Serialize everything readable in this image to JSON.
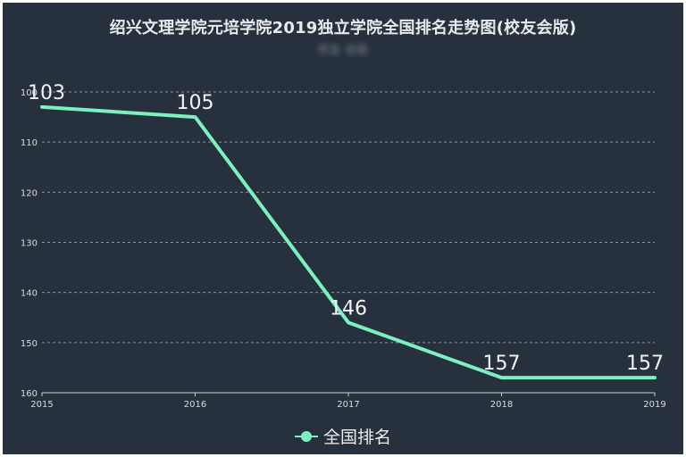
{
  "chart_data": {
    "type": "line",
    "title": "绍兴文理学院元培学院2019独立学院全国排名走势图(校友会版)",
    "subtitle": "校友 会版",
    "categories": [
      "2015",
      "2016",
      "2017",
      "2018",
      "2019"
    ],
    "series": [
      {
        "name": "全国排名",
        "values": [
          103,
          105,
          146,
          157,
          157
        ]
      }
    ],
    "y_ticks": [
      "100",
      "110",
      "120",
      "130",
      "140",
      "150",
      "160"
    ],
    "ylim": [
      100,
      160
    ],
    "y_inverted": true,
    "grid": true,
    "legend_position": "bottom",
    "colors": {
      "background": "#27313d",
      "line": "#7cf0c0",
      "grid": "#8a939e",
      "text": "#e8ebee"
    }
  }
}
